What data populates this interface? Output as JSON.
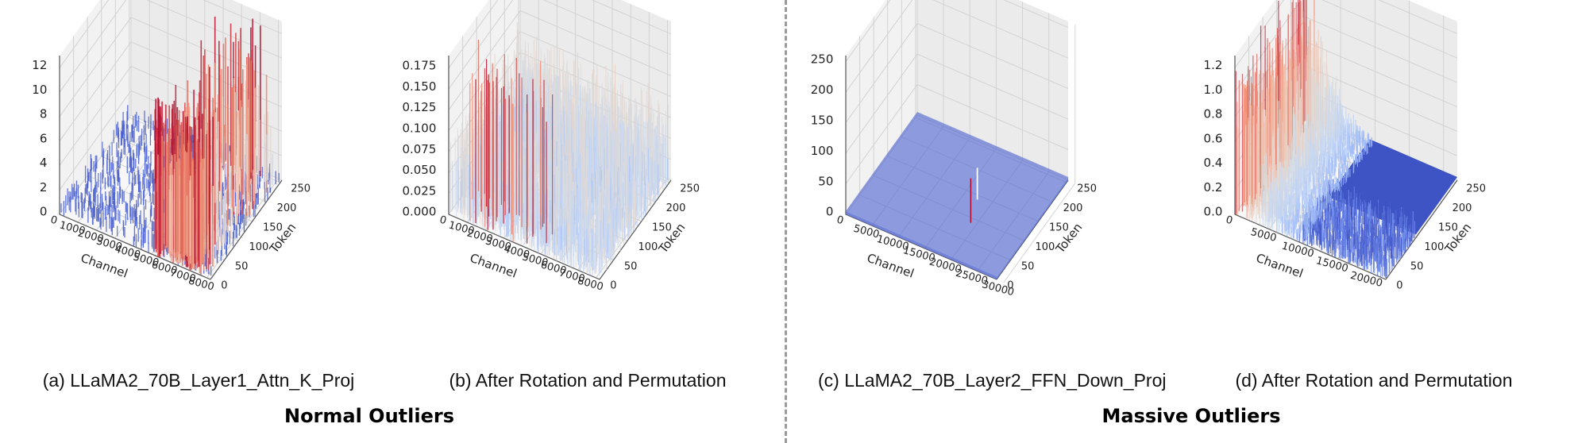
{
  "chart_data": [
    {
      "type": "surface3d",
      "caption": "(a) LLaMA2_70B_Layer1_Attn_K_Proj",
      "xlabel": "Channel",
      "ylabel": "Token",
      "x_ticks": [
        "0",
        "1000",
        "2000",
        "3000",
        "4000",
        "5000",
        "6000",
        "7000",
        "8000"
      ],
      "x_range": [
        0,
        8192
      ],
      "y_ticks": [
        "0",
        "50",
        "100",
        "150",
        "200",
        "250"
      ],
      "y_range": [
        0,
        256
      ],
      "z_ticks": [
        "0",
        "2",
        "4",
        "6",
        "8",
        "10",
        "12"
      ],
      "z_range": [
        0,
        13
      ],
      "description_values": {
        "baseline": 1.2,
        "outlier_region_channels": [
          5000,
          8192
        ],
        "outlier_peak": 12.5
      }
    },
    {
      "type": "surface3d",
      "caption": "(b) After Rotation and Permutation",
      "xlabel": "Channel",
      "ylabel": "Token",
      "x_ticks": [
        "0",
        "1000",
        "2000",
        "3000",
        "4000",
        "5000",
        "6000",
        "7000",
        "8000"
      ],
      "x_range": [
        0,
        8192
      ],
      "y_ticks": [
        "0",
        "50",
        "100",
        "150",
        "200",
        "250"
      ],
      "y_range": [
        0,
        256
      ],
      "z_ticks": [
        "0.000",
        "0.025",
        "0.050",
        "0.075",
        "0.100",
        "0.125",
        "0.150",
        "0.175"
      ],
      "z_range": [
        0,
        0.19
      ],
      "description_values": {
        "typical_max": 0.12,
        "peak": 0.19
      }
    },
    {
      "type": "surface3d",
      "caption": "(c) LLaMA2_70B_Layer2_FFN_Down_Proj",
      "xlabel": "Channel",
      "ylabel": "Token",
      "x_ticks": [
        "0",
        "5000",
        "10000",
        "15000",
        "20000",
        "25000",
        "30000"
      ],
      "x_range": [
        0,
        28672
      ],
      "y_ticks": [
        "0",
        "50",
        "100",
        "150",
        "200",
        "250"
      ],
      "y_range": [
        0,
        256
      ],
      "z_ticks": [
        "0",
        "50",
        "100",
        "150",
        "200",
        "250"
      ],
      "z_range": [
        0,
        260
      ],
      "description_values": {
        "baseline": 1,
        "massive_outlier_channels": [
          9500,
          19000
        ]
      }
    },
    {
      "type": "surface3d",
      "caption": "(d) After Rotation and Permutation",
      "xlabel": "Channel",
      "ylabel": "Token",
      "x_ticks": [
        "0",
        "5000",
        "10000",
        "15000",
        "20000"
      ],
      "x_range": [
        0,
        22000
      ],
      "y_ticks": [
        "0",
        "50",
        "100",
        "150",
        "200",
        "250"
      ],
      "y_range": [
        0,
        256
      ],
      "z_ticks": [
        "0.0",
        "0.2",
        "0.4",
        "0.6",
        "0.8",
        "1.0",
        "1.2"
      ],
      "z_range": [
        0,
        1.3
      ],
      "description_values": {
        "peak": 1.25
      }
    }
  ],
  "groups": {
    "left_title": "Normal Outliers",
    "right_title": "Massive Outliers"
  }
}
